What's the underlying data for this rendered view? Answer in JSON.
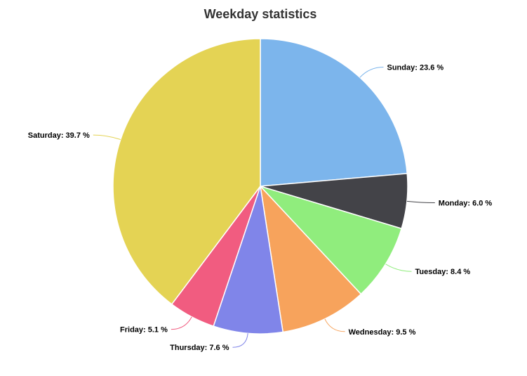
{
  "chart_data": {
    "type": "pie",
    "title": "Weekday statistics",
    "start_angle_deg": 0,
    "direction": "clockwise",
    "slices": [
      {
        "name": "Sunday",
        "value": 23.6,
        "label": "Sunday: 23.6 %",
        "color": "#7cb5ec"
      },
      {
        "name": "Monday",
        "value": 6.0,
        "label": "Monday: 6.0 %",
        "color": "#434348"
      },
      {
        "name": "Tuesday",
        "value": 8.4,
        "label": "Tuesday: 8.4 %",
        "color": "#90ed7d"
      },
      {
        "name": "Wednesday",
        "value": 9.5,
        "label": "Wednesday: 9.5 %",
        "color": "#f7a35c"
      },
      {
        "name": "Thursday",
        "value": 7.6,
        "label": "Thursday: 7.6 %",
        "color": "#8085e9"
      },
      {
        "name": "Friday",
        "value": 5.1,
        "label": "Friday: 5.1 %",
        "color": "#f15c80"
      },
      {
        "name": "Saturday",
        "value": 39.7,
        "label": "Saturday: 39.7 %",
        "color": "#e4d354"
      }
    ]
  }
}
